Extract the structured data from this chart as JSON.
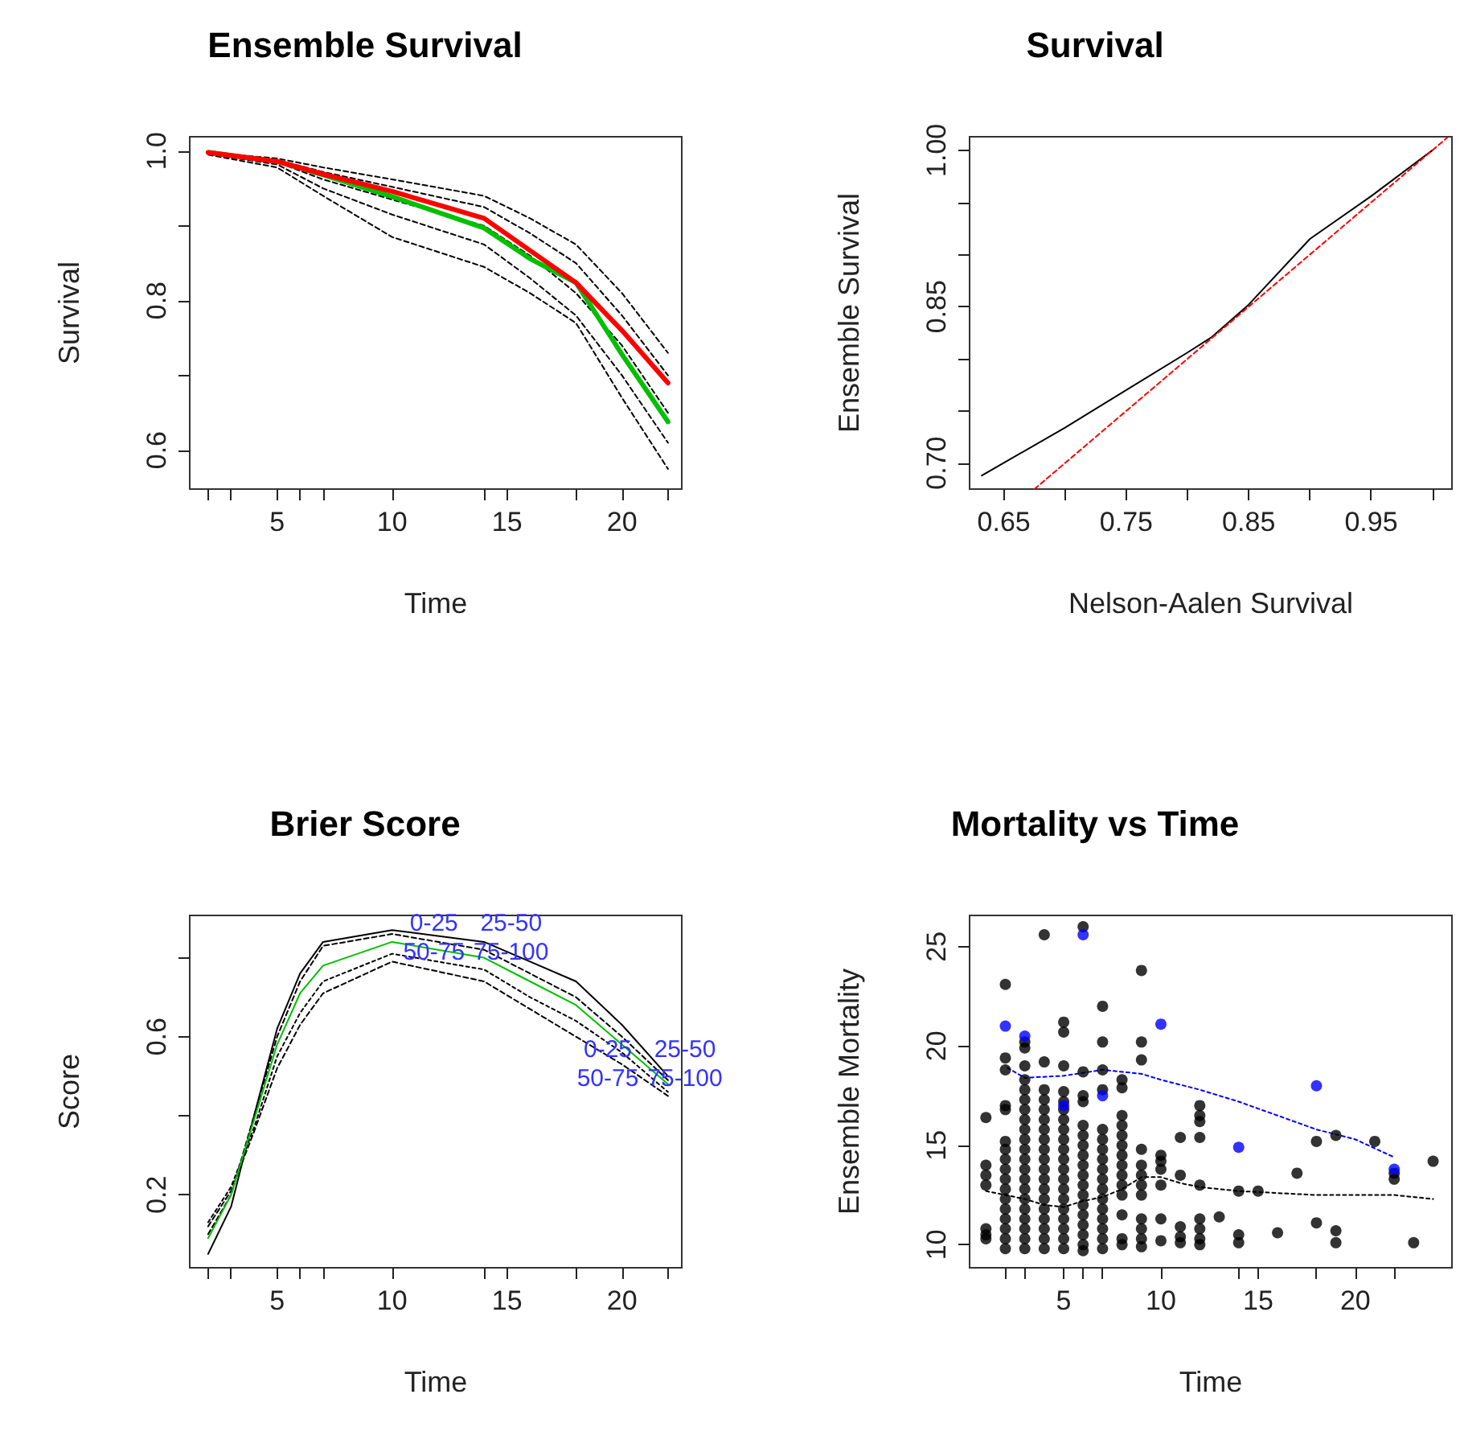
{
  "chart_data": [
    {
      "type": "line",
      "title": "Ensemble Survival",
      "xlabel": "Time",
      "ylabel": "Survival",
      "xlim": [
        1.2,
        22.6
      ],
      "ylim": [
        0.548,
        1.019
      ],
      "xticks": [
        {
          "value": 2,
          "label": null
        },
        {
          "value": 3,
          "label": null
        },
        5,
        {
          "value": 6,
          "label": null
        },
        {
          "value": 7,
          "label": null
        },
        10,
        {
          "value": 14,
          "label": null
        },
        15,
        {
          "value": 18,
          "label": null
        },
        20,
        {
          "value": 22,
          "label": null
        }
      ],
      "yticks": [
        0.6,
        {
          "value": 0.7,
          "label": null
        },
        0.8,
        {
          "value": 0.9,
          "label": null
        },
        {
          "value": 1,
          "label": "1.0"
        }
      ],
      "x": [
        2,
        5,
        7,
        10,
        14,
        16,
        18,
        20,
        22
      ],
      "series": [
        {
          "color": "#000000",
          "line_style": "dashed",
          "values": [
            0.998,
            0.99,
            0.978,
            0.962,
            0.94,
            0.91,
            0.875,
            0.81,
            0.73
          ]
        },
        {
          "color": "#000000",
          "line_style": "dashed",
          "values": [
            0.998,
            0.988,
            0.972,
            0.952,
            0.925,
            0.89,
            0.85,
            0.78,
            0.7
          ]
        },
        {
          "color": "#000000",
          "line_style": "dashed",
          "values": [
            0.997,
            0.985,
            0.962,
            0.935,
            0.9,
            0.86,
            0.81,
            0.74,
            0.65
          ]
        },
        {
          "color": "#000000",
          "line_style": "dashed",
          "values": [
            0.996,
            0.982,
            0.95,
            0.915,
            0.875,
            0.83,
            0.78,
            0.7,
            0.61
          ]
        },
        {
          "color": "#000000",
          "line_style": "dashed",
          "values": [
            0.995,
            0.978,
            0.94,
            0.885,
            0.845,
            0.81,
            0.77,
            0.67,
            0.575
          ]
        },
        {
          "color": "#00c000",
          "line_style": "solid",
          "values": [
            0.998,
            0.986,
            0.968,
            0.939,
            0.897,
            0.856,
            0.824,
            0.728,
            0.638
          ]
        },
        {
          "color": "#ff0000",
          "line_style": "solid",
          "values": [
            0.998,
            0.986,
            0.969,
            0.946,
            0.91,
            0.867,
            0.824,
            0.76,
            0.69
          ]
        }
      ]
    },
    {
      "type": "line",
      "title": "Survival",
      "xlabel": "Nelson-Aalen Survival",
      "ylabel": "Ensemble Survival",
      "xlim": [
        0.622,
        1.016
      ],
      "ylim": [
        0.675,
        1.013
      ],
      "xticks": [
        0.65,
        {
          "value": 0.7,
          "label": null
        },
        0.75,
        {
          "value": 0.8,
          "label": null
        },
        0.85,
        {
          "value": 0.9,
          "label": null
        },
        0.95,
        {
          "value": 1.0,
          "label": null
        }
      ],
      "yticks": [
        {
          "value": 0.7,
          "label": "0.70"
        },
        {
          "value": 0.75,
          "label": null
        },
        {
          "value": 0.8,
          "label": null
        },
        0.85,
        {
          "value": 0.9,
          "label": null
        },
        {
          "value": 0.95,
          "label": null
        },
        {
          "value": 1.0,
          "label": "1.00"
        }
      ],
      "series": [
        {
          "color": "#000000",
          "line_style": "solid",
          "x": [
            0.632,
            0.7,
            0.75,
            0.8,
            0.82,
            0.85,
            0.9,
            0.95,
            1.0
          ],
          "values": [
            0.688,
            0.734,
            0.77,
            0.806,
            0.821,
            0.852,
            0.915,
            0.956,
            1.0
          ]
        },
        {
          "color": "#ff0000",
          "line_style": "dashed",
          "x": [
            0.675,
            1.012
          ],
          "values": [
            0.675,
            1.012
          ]
        }
      ]
    },
    {
      "type": "line",
      "title": "Brier Score",
      "xlabel": "Time",
      "ylabel": "Score",
      "xlim": [
        1.2,
        22.6
      ],
      "ylim": [
        0.015,
        0.907
      ],
      "xticks": [
        {
          "value": 2,
          "label": null
        },
        {
          "value": 3,
          "label": null
        },
        5,
        {
          "value": 6,
          "label": null
        },
        {
          "value": 7,
          "label": null
        },
        10,
        {
          "value": 14,
          "label": null
        },
        15,
        {
          "value": 18,
          "label": null
        },
        20,
        {
          "value": 22,
          "label": null
        }
      ],
      "yticks": [
        0.2,
        {
          "value": 0.4,
          "label": null
        },
        0.6,
        {
          "value": 0.8,
          "label": null
        }
      ],
      "x": [
        2,
        3,
        4,
        5,
        6,
        7,
        10,
        14,
        16,
        18,
        20,
        22
      ],
      "series": [
        {
          "color": "#000000",
          "line_style": "solid",
          "values": [
            0.05,
            0.17,
            0.4,
            0.62,
            0.76,
            0.84,
            0.87,
            0.84,
            0.79,
            0.74,
            0.63,
            0.5
          ]
        },
        {
          "color": "#000000",
          "line_style": "dashed",
          "values": [
            0.1,
            0.2,
            0.4,
            0.6,
            0.74,
            0.83,
            0.86,
            0.82,
            0.76,
            0.7,
            0.6,
            0.49
          ]
        },
        {
          "color": "#000000",
          "line_style": "dotted",
          "values": [
            0.13,
            0.22,
            0.37,
            0.55,
            0.66,
            0.74,
            0.81,
            0.77,
            0.7,
            0.64,
            0.56,
            0.46
          ]
        },
        {
          "color": "#000000",
          "line_style": "dashed",
          "values": [
            0.12,
            0.21,
            0.36,
            0.52,
            0.63,
            0.71,
            0.79,
            0.74,
            0.67,
            0.6,
            0.53,
            0.45
          ]
        },
        {
          "color": "#00c000",
          "line_style": "solid",
          "values": [
            0.09,
            0.2,
            0.39,
            0.58,
            0.71,
            0.78,
            0.84,
            0.8,
            0.74,
            0.68,
            0.58,
            0.48
          ]
        }
      ],
      "annotations": [
        {
          "text": "0-25",
          "x": 13.5,
          "y": 0.85
        },
        {
          "text": "25-50",
          "x": 13.2,
          "y": 0.83
        },
        {
          "text": "50-75",
          "x": 13.5,
          "y": 0.78
        },
        {
          "text": "75-100",
          "x": 13.2,
          "y": 0.755
        },
        {
          "text": "0-25",
          "x": 21.5,
          "y": 0.53
        },
        {
          "text": "25-50",
          "x": 21.5,
          "y": 0.52
        },
        {
          "text": "50-75",
          "x": 21.5,
          "y": 0.485
        },
        {
          "text": "75-100",
          "x": 21.5,
          "y": 0.47
        }
      ]
    },
    {
      "type": "scatter",
      "title": "Mortality vs Time",
      "xlabel": "Time",
      "ylabel": "Ensemble Mortality",
      "xlim": [
        0.16,
        24.97
      ],
      "ylim": [
        8.84,
        26.57
      ],
      "marker": "circle",
      "xticks": [
        {
          "value": 2,
          "label": null
        },
        {
          "value": 3,
          "label": null
        },
        5,
        {
          "value": 6,
          "label": null
        },
        {
          "value": 7,
          "label": null
        },
        10,
        {
          "value": 14,
          "label": null
        },
        15,
        {
          "value": 18,
          "label": null
        },
        20,
        {
          "value": 22,
          "label": null
        }
      ],
      "yticks": [
        10,
        15,
        20,
        25
      ],
      "series": [
        {
          "type": "scatter",
          "color": "#000000",
          "x": [
            1,
            1,
            1,
            1,
            1,
            1,
            1,
            2,
            2,
            2,
            2,
            2,
            2,
            2,
            2,
            2,
            2,
            2,
            2,
            2,
            2,
            2,
            2,
            2,
            3,
            3,
            3,
            3,
            3,
            3,
            3,
            3,
            3,
            3,
            3,
            3,
            3,
            3,
            3,
            3,
            3,
            3,
            3,
            3,
            3,
            4,
            4,
            4,
            4,
            4,
            4,
            4,
            4,
            4,
            4,
            4,
            4,
            4,
            4,
            4,
            4,
            4,
            4,
            4,
            5,
            5,
            5,
            5,
            5,
            5,
            5,
            5,
            5,
            5,
            5,
            5,
            5,
            5,
            5,
            5,
            5,
            5,
            5,
            5,
            6,
            6,
            6,
            6,
            6,
            6,
            6,
            6,
            6,
            6,
            6,
            6,
            6,
            6,
            6,
            6,
            6,
            6,
            7,
            7,
            7,
            7,
            7,
            7,
            7,
            7,
            7,
            7,
            7,
            7,
            7,
            7,
            7,
            7,
            7,
            8,
            8,
            8,
            8,
            8,
            8,
            8,
            8,
            8,
            8,
            8,
            8,
            8,
            8,
            9,
            9,
            9,
            9,
            9,
            9,
            9,
            9,
            9,
            9,
            9,
            9,
            10,
            10,
            10,
            10,
            10,
            10,
            11,
            11,
            11,
            11,
            11,
            12,
            12,
            12,
            12,
            12,
            12,
            12,
            12,
            12,
            13,
            14,
            14,
            14,
            15,
            16,
            17,
            18,
            18,
            19,
            19,
            19,
            21,
            22,
            22,
            23,
            24
          ],
          "values": [
            16.4,
            14,
            13.5,
            13,
            10.8,
            10.5,
            10.3,
            23.1,
            19.4,
            18.8,
            17,
            16.8,
            15.2,
            14.8,
            14.3,
            13.8,
            13.3,
            12.8,
            12.3,
            11.8,
            11.3,
            10.8,
            10.3,
            9.8,
            20.2,
            19.9,
            19,
            18.3,
            17.8,
            17.3,
            16.8,
            16.3,
            15.8,
            15.3,
            14.8,
            14.3,
            13.8,
            13.3,
            12.8,
            12.3,
            11.8,
            11.3,
            10.8,
            10.3,
            9.8,
            25.6,
            19.2,
            17.8,
            17.3,
            16.8,
            16.3,
            15.8,
            15.3,
            14.8,
            14.3,
            13.8,
            13.3,
            12.8,
            12.3,
            11.8,
            11.3,
            10.8,
            10.3,
            9.8,
            21.2,
            20.7,
            19,
            17.7,
            17.2,
            16.8,
            16.3,
            15.8,
            15.3,
            14.8,
            14.3,
            13.8,
            13.3,
            12.8,
            12.3,
            11.8,
            11.3,
            10.8,
            10.3,
            9.8,
            26,
            18.7,
            17.5,
            17.2,
            16,
            15.5,
            15,
            14.5,
            14,
            13.5,
            13,
            12.5,
            12,
            11.5,
            11,
            10.5,
            10,
            9.7,
            22,
            20.2,
            18.8,
            17.8,
            15.8,
            15.3,
            14.8,
            14.3,
            13.8,
            13.3,
            12.8,
            12.3,
            11.8,
            11.3,
            10.8,
            10.3,
            9.8,
            18.3,
            17.9,
            16.5,
            16,
            15.5,
            15,
            14.5,
            14,
            13.5,
            13,
            12.5,
            11.5,
            10.3,
            10,
            23.8,
            20.2,
            19.3,
            14.8,
            14,
            13.5,
            13,
            12.5,
            11.3,
            10.8,
            10.3,
            9.9,
            14.5,
            14.2,
            13.8,
            13,
            11.3,
            10.2,
            15.4,
            13.5,
            10.9,
            10.4,
            10.1,
            17,
            16.5,
            16.2,
            15.4,
            13,
            11.3,
            10.8,
            10.3,
            10,
            11.4,
            12.7,
            10.5,
            10.1,
            12.7,
            10.6,
            13.6,
            15.2,
            11.1,
            15.5,
            10.7,
            10.1,
            15.2,
            13.6,
            13.3,
            10.1,
            14.2
          ]
        },
        {
          "type": "scatter",
          "color": "#0000ff",
          "x": [
            2,
            3,
            5,
            6,
            7,
            10,
            14,
            18,
            22
          ],
          "values": [
            21,
            20.5,
            17,
            25.6,
            17.5,
            21.1,
            14.9,
            18,
            13.8
          ]
        },
        {
          "type": "line",
          "marker": "none",
          "line_style": "dotted",
          "color": "#0000ff",
          "x": [
            2.1,
            3,
            5,
            7,
            9,
            10,
            12,
            14,
            16,
            18,
            20,
            22
          ],
          "values": [
            18.9,
            18.4,
            18.5,
            18.8,
            18.6,
            18.3,
            17.8,
            17.2,
            16.5,
            15.8,
            15.3,
            14.4
          ]
        },
        {
          "type": "line",
          "marker": "none",
          "line_style": "dotted",
          "color": "#000000",
          "x": [
            1,
            2,
            3,
            4,
            5,
            6,
            7,
            8,
            9,
            10,
            11,
            12,
            14,
            16,
            18,
            22,
            24
          ],
          "values": [
            12.7,
            12.5,
            12.3,
            12,
            11.9,
            12.2,
            12.4,
            12.8,
            13.4,
            13.4,
            13.1,
            12.9,
            12.7,
            12.6,
            12.5,
            12.5,
            12.3
          ]
        }
      ]
    }
  ]
}
